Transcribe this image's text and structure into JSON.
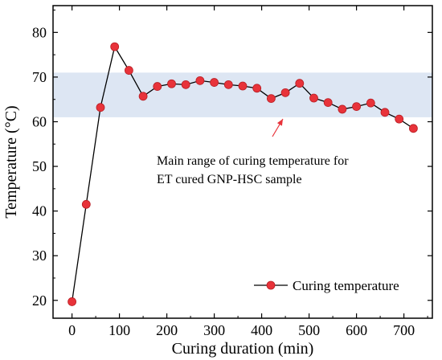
{
  "chart_data": {
    "type": "line",
    "xlabel": "Curing duration (min)",
    "ylabel": "Temperature (°C)",
    "xlim": [
      -40,
      760
    ],
    "ylim": [
      16,
      86
    ],
    "xticks": [
      "0",
      "100",
      "200",
      "300",
      "400",
      "500",
      "600",
      "700"
    ],
    "yticks": [
      "20",
      "30",
      "40",
      "50",
      "60",
      "70",
      "80"
    ],
    "band": {
      "y_from": 61,
      "y_to": 71,
      "color": "#dde6f3"
    },
    "annotation": {
      "line1": "Main range of curing temperature for",
      "line2": "ET cured GNP-HSC sample",
      "arrow_color": "#e8333a"
    },
    "legend": {
      "label": "Curing temperature",
      "position": "bottom-right"
    },
    "series": [
      {
        "name": "Curing temperature",
        "color": "#e8333a",
        "line_color": "#000000",
        "x": [
          0,
          30,
          60,
          90,
          120,
          150,
          180,
          210,
          240,
          270,
          300,
          330,
          360,
          390,
          420,
          450,
          480,
          510,
          540,
          570,
          600,
          630,
          660,
          690,
          720
        ],
        "y": [
          19.7,
          41.5,
          63.2,
          76.8,
          71.5,
          65.7,
          67.9,
          68.5,
          68.3,
          69.2,
          68.8,
          68.3,
          68.0,
          67.5,
          65.2,
          66.5,
          68.6,
          65.3,
          64.3,
          62.8,
          63.4,
          64.2,
          62.1,
          60.6,
          58.5
        ]
      }
    ]
  }
}
